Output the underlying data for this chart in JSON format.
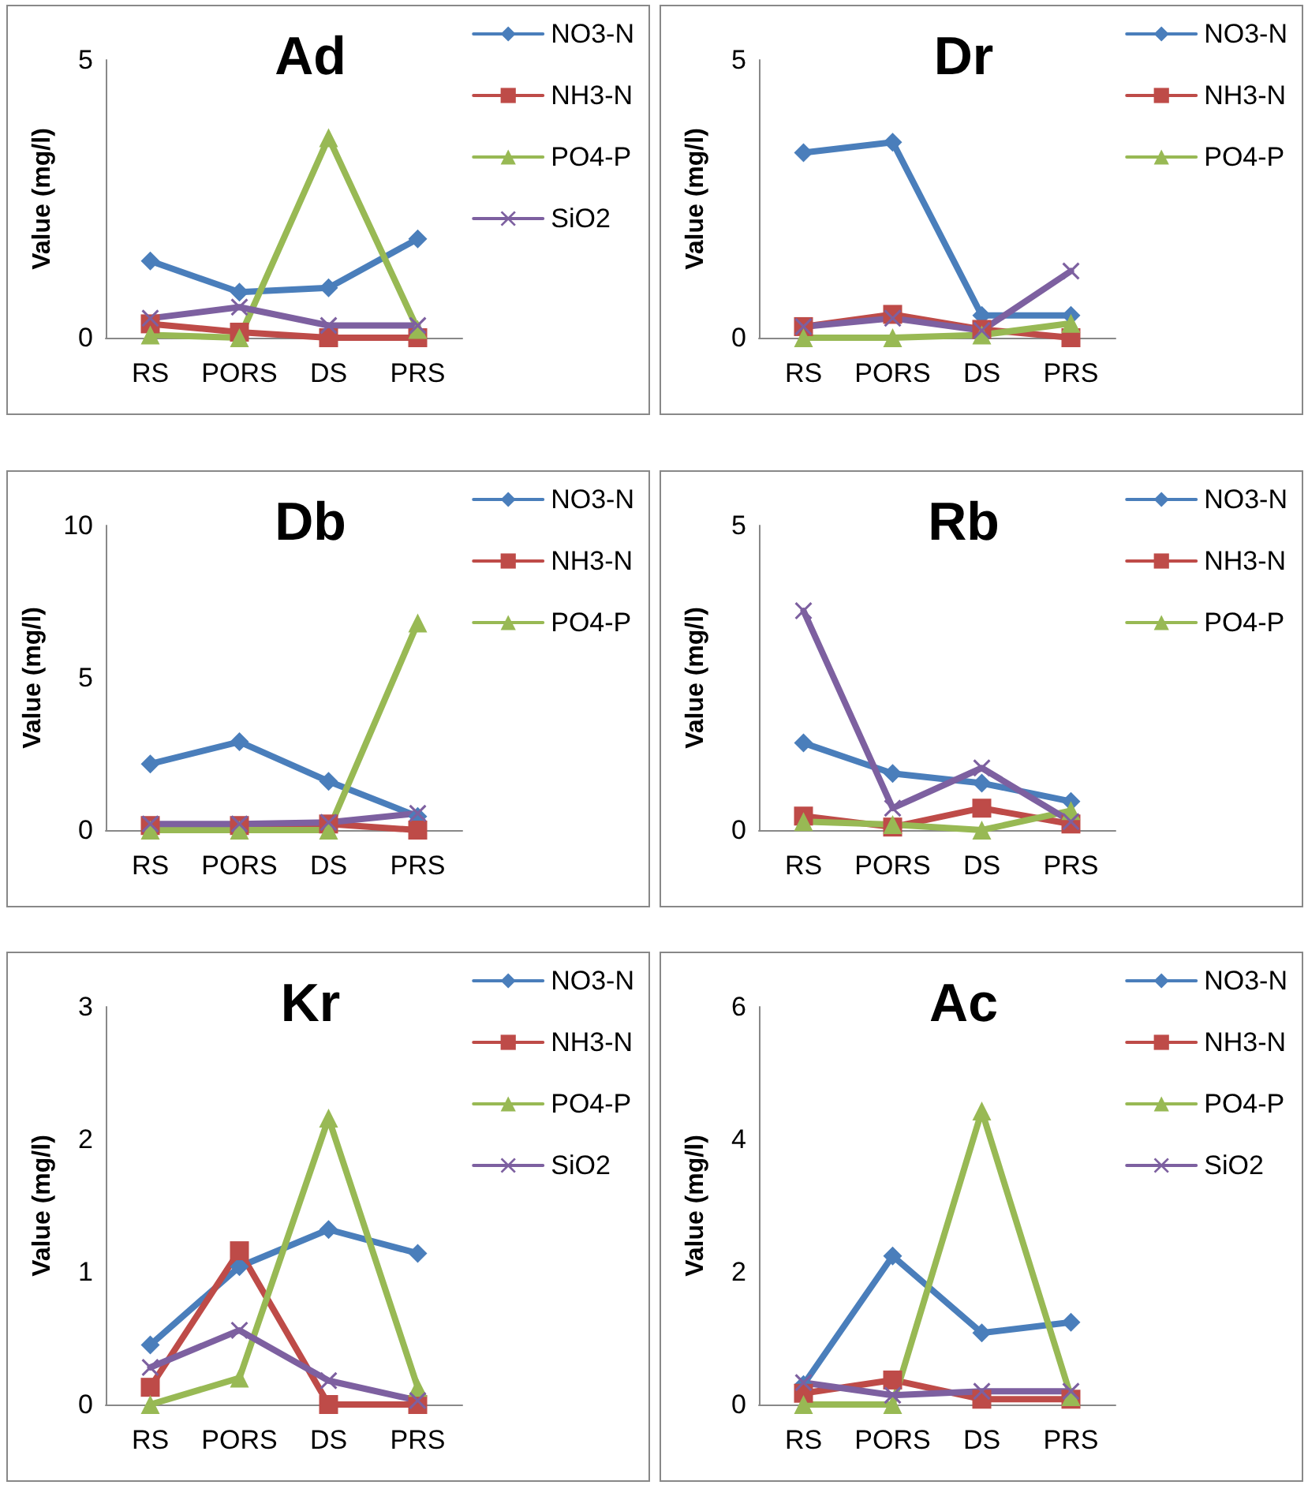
{
  "chart_data": [
    {
      "type": "line",
      "title": "Ad",
      "ylabel": "Value (mg/l)",
      "categories": [
        "RS",
        "PORS",
        "DS",
        "PRS"
      ],
      "ylim": [
        0,
        5
      ],
      "yticks": [
        0,
        5
      ],
      "grid": false,
      "legend": "top right",
      "series": [
        {
          "name": "NO3-N",
          "color": "#4a7ebb",
          "marker": "diamond",
          "values": [
            1.38,
            0.82,
            0.9,
            1.78
          ]
        },
        {
          "name": "NH3-N",
          "color": "#be4b48",
          "marker": "square",
          "values": [
            0.25,
            0.1,
            0,
            0
          ]
        },
        {
          "name": "PO4-P",
          "color": "#98b954",
          "marker": "triangle",
          "values": [
            0.05,
            0,
            3.6,
            0.15
          ]
        },
        {
          "name": "SiO2",
          "color": "#7d60a0",
          "marker": "cross",
          "values": [
            0.35,
            0.55,
            0.22,
            0.22
          ]
        }
      ]
    },
    {
      "type": "line",
      "title": "Dr",
      "ylabel": "Value (mg/l)",
      "categories": [
        "RS",
        "PORS",
        "DS",
        "PRS"
      ],
      "ylim": [
        0,
        5
      ],
      "yticks": [
        0,
        5
      ],
      "grid": false,
      "legend": "top right",
      "series": [
        {
          "name": "NO3-N",
          "color": "#4a7ebb",
          "marker": "diamond",
          "values": [
            3.33,
            3.52,
            0.4,
            0.4
          ]
        },
        {
          "name": "NH3-N",
          "color": "#be4b48",
          "marker": "square",
          "values": [
            0.2,
            0.42,
            0.15,
            0
          ]
        },
        {
          "name": "PO4-P",
          "color": "#98b954",
          "marker": "triangle",
          "values": [
            0,
            0,
            0.05,
            0.26
          ]
        },
        {
          "color": "#7d60a0",
          "marker": "cross",
          "values": [
            0.2,
            0.35,
            0.13,
            1.2
          ]
        }
      ]
    },
    {
      "type": "line",
      "title": "Db",
      "ylabel": "Value (mg/l)",
      "categories": [
        "RS",
        "PORS",
        "DS",
        "PRS"
      ],
      "ylim": [
        0,
        10
      ],
      "yticks": [
        0,
        5,
        10
      ],
      "grid": false,
      "legend": "top right",
      "series": [
        {
          "name": "NO3-N",
          "color": "#4a7ebb",
          "marker": "diamond",
          "values": [
            2.17,
            2.9,
            1.6,
            0.45
          ]
        },
        {
          "name": "NH3-N",
          "color": "#be4b48",
          "marker": "square",
          "values": [
            0.15,
            0.15,
            0.2,
            0
          ]
        },
        {
          "name": "PO4-P",
          "color": "#98b954",
          "marker": "triangle",
          "values": [
            0,
            0,
            0,
            6.8
          ]
        },
        {
          "color": "#7d60a0",
          "marker": "cross",
          "values": [
            0.2,
            0.2,
            0.25,
            0.55
          ]
        }
      ]
    },
    {
      "type": "line",
      "title": "Rb",
      "ylabel": "Value (mg/l)",
      "categories": [
        "RS",
        "PORS",
        "DS",
        "PRS"
      ],
      "ylim": [
        0,
        5
      ],
      "yticks": [
        0,
        5
      ],
      "grid": false,
      "legend": "top right",
      "series": [
        {
          "name": "NO3-N",
          "color": "#4a7ebb",
          "marker": "diamond",
          "values": [
            1.43,
            0.93,
            0.77,
            0.47
          ]
        },
        {
          "name": "NH3-N",
          "color": "#be4b48",
          "marker": "square",
          "values": [
            0.23,
            0.05,
            0.36,
            0.1
          ]
        },
        {
          "name": "PO4-P",
          "color": "#98b954",
          "marker": "triangle",
          "values": [
            0.14,
            0.09,
            0,
            0.32
          ]
        },
        {
          "color": "#7d60a0",
          "marker": "cross",
          "values": [
            3.6,
            0.36,
            1.02,
            0.14
          ]
        }
      ]
    },
    {
      "type": "line",
      "title": "Kr",
      "ylabel": "Value (mg/l)",
      "categories": [
        "RS",
        "PORS",
        "DS",
        "PRS"
      ],
      "ylim": [
        0,
        3
      ],
      "yticks": [
        0,
        1,
        2,
        3
      ],
      "grid": false,
      "legend": "top right",
      "series": [
        {
          "name": "NO3-N",
          "color": "#4a7ebb",
          "marker": "diamond",
          "values": [
            0.45,
            1.04,
            1.32,
            1.14
          ]
        },
        {
          "name": "NH3-N",
          "color": "#be4b48",
          "marker": "square",
          "values": [
            0.13,
            1.16,
            0,
            0
          ]
        },
        {
          "name": "PO4-P",
          "color": "#98b954",
          "marker": "triangle",
          "values": [
            0,
            0.2,
            2.16,
            0.13
          ]
        },
        {
          "name": "SiO2",
          "color": "#7d60a0",
          "marker": "cross",
          "values": [
            0.28,
            0.56,
            0.18,
            0.03
          ]
        }
      ]
    },
    {
      "type": "line",
      "title": "Ac",
      "ylabel": "Value (mg/l)",
      "categories": [
        "RS",
        "PORS",
        "DS",
        "PRS"
      ],
      "ylim": [
        0,
        6
      ],
      "yticks": [
        0,
        2,
        4,
        6
      ],
      "grid": false,
      "legend": "top right",
      "series": [
        {
          "name": "NO3-N",
          "color": "#4a7ebb",
          "marker": "diamond",
          "values": [
            0.3,
            2.24,
            1.08,
            1.24
          ]
        },
        {
          "name": "NH3-N",
          "color": "#be4b48",
          "marker": "square",
          "values": [
            0.17,
            0.37,
            0.08,
            0.08
          ]
        },
        {
          "name": "PO4-P",
          "color": "#98b954",
          "marker": "triangle",
          "values": [
            0,
            0,
            4.43,
            0.12
          ]
        },
        {
          "name": "SiO2",
          "color": "#7d60a0",
          "marker": "cross",
          "values": [
            0.33,
            0.14,
            0.2,
            0.2
          ]
        }
      ]
    }
  ]
}
